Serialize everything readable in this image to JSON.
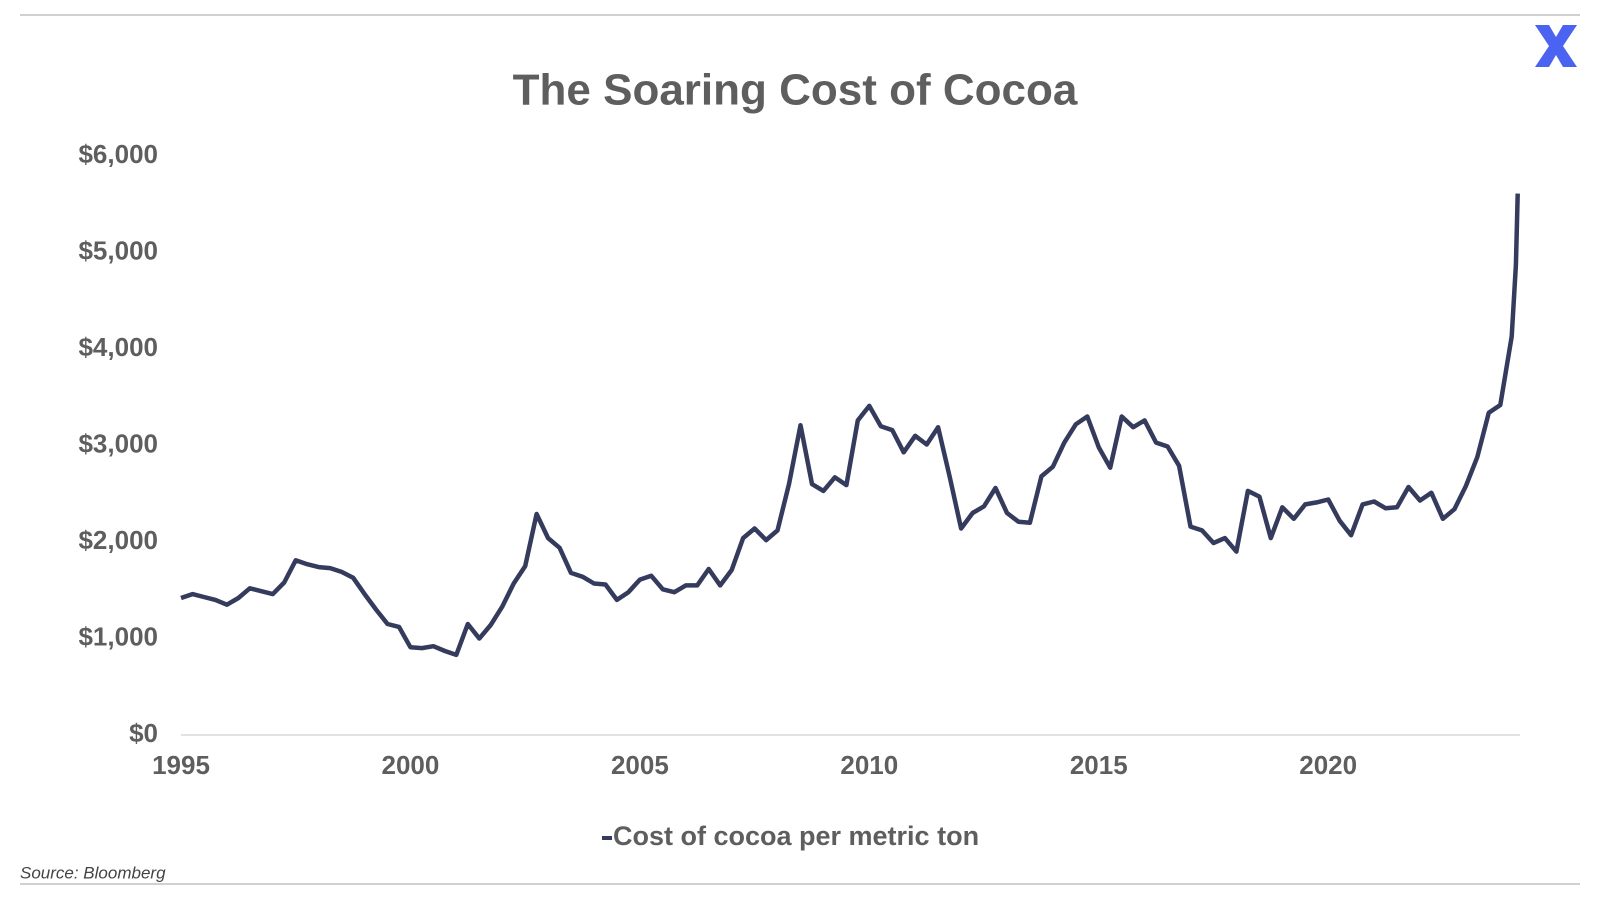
{
  "chart_data": {
    "type": "line",
    "title": "The Soaring Cost of Cocoa",
    "source": "Source: Bloomberg",
    "x": [
      1995,
      1995.25,
      1995.5,
      1995.75,
      1996,
      1996.25,
      1996.5,
      1996.75,
      1997,
      1997.25,
      1997.5,
      1997.75,
      1998,
      1998.25,
      1998.5,
      1998.75,
      1999,
      1999.25,
      1999.5,
      1999.75,
      2000,
      2000.25,
      2000.5,
      2000.75,
      2001,
      2001.25,
      2001.5,
      2001.75,
      2002,
      2002.25,
      2002.5,
      2002.75,
      2003,
      2003.25,
      2003.5,
      2003.75,
      2004,
      2004.25,
      2004.5,
      2004.75,
      2005,
      2005.25,
      2005.5,
      2005.75,
      2006,
      2006.25,
      2006.5,
      2006.75,
      2007,
      2007.25,
      2007.5,
      2007.75,
      2008,
      2008.25,
      2008.5,
      2008.75,
      2009,
      2009.25,
      2009.5,
      2009.75,
      2010,
      2010.25,
      2010.5,
      2010.75,
      2011,
      2011.25,
      2011.5,
      2011.75,
      2012,
      2012.25,
      2012.5,
      2012.75,
      2013,
      2013.25,
      2013.5,
      2013.75,
      2014,
      2014.25,
      2014.5,
      2014.75,
      2015,
      2015.25,
      2015.5,
      2015.75,
      2016,
      2016.25,
      2016.5,
      2016.75,
      2017,
      2017.25,
      2017.5,
      2017.75,
      2018,
      2018.25,
      2018.5,
      2018.75,
      2019,
      2019.25,
      2019.5,
      2019.75,
      2020,
      2020.25,
      2020.5,
      2020.75,
      2021,
      2021.25,
      2021.5,
      2021.75,
      2022,
      2022.25,
      2022.5,
      2022.75,
      2023,
      2023.25,
      2023.5,
      2023.75,
      2024,
      2024.09,
      2024.13
    ],
    "series": [
      {
        "name": "Cost of cocoa per metric ton",
        "color": "#353b5c",
        "values": [
          1420,
          1460,
          1430,
          1400,
          1350,
          1420,
          1520,
          1490,
          1460,
          1580,
          1810,
          1770,
          1740,
          1730,
          1690,
          1630,
          1460,
          1300,
          1150,
          1120,
          910,
          900,
          920,
          870,
          830,
          1150,
          1000,
          1140,
          1330,
          1570,
          1750,
          2290,
          2040,
          1940,
          1680,
          1640,
          1570,
          1560,
          1400,
          1480,
          1610,
          1650,
          1510,
          1480,
          1550,
          1550,
          1720,
          1550,
          1710,
          2040,
          2140,
          2020,
          2120,
          2600,
          3210,
          2600,
          2530,
          2670,
          2590,
          3260,
          3410,
          3200,
          3160,
          2930,
          3100,
          3010,
          3190,
          2680,
          2140,
          2300,
          2370,
          2560,
          2300,
          2210,
          2200,
          2680,
          2780,
          3030,
          3220,
          3300,
          2980,
          2770,
          3300,
          3190,
          3260,
          3030,
          2990,
          2790,
          2160,
          2120,
          1990,
          2040,
          1900,
          2530,
          2470,
          2040,
          2360,
          2240,
          2390,
          2410,
          2440,
          2220,
          2070,
          2390,
          2420,
          2350,
          2360,
          2570,
          2430,
          2510,
          2240,
          2340,
          2580,
          2880,
          3340,
          3420,
          4130,
          4870,
          5610
        ]
      }
    ],
    "xlim": [
      1995,
      2024.18
    ],
    "xticks": [
      1995,
      2000,
      2005,
      2010,
      2015,
      2020
    ],
    "ylim": [
      0,
      6000
    ],
    "yticks": [
      {
        "value": 0,
        "label": "$0"
      },
      {
        "value": 1000,
        "label": "$1,000"
      },
      {
        "value": 2000,
        "label": "$2,000"
      },
      {
        "value": 3000,
        "label": "$3,000"
      },
      {
        "value": 4000,
        "label": "$4,000"
      },
      {
        "value": 5000,
        "label": "$5,000"
      },
      {
        "value": 6000,
        "label": "$6,000"
      }
    ],
    "legend": "bottom"
  }
}
